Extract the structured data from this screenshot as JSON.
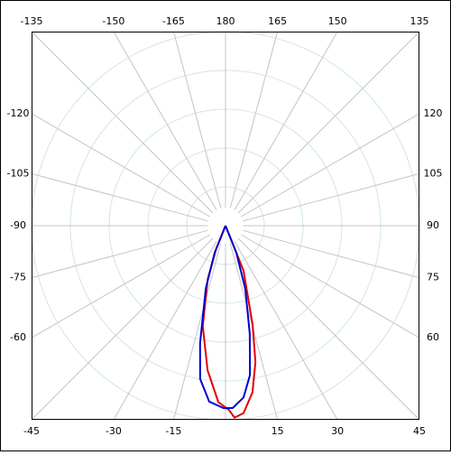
{
  "chart_data": {
    "type": "polar",
    "thetaticks": [
      -135,
      -150,
      -165,
      180,
      165,
      150,
      135,
      -120,
      -105,
      -90,
      -75,
      -60,
      -45,
      -30,
      -15,
      15,
      30,
      45,
      120,
      105,
      90,
      75,
      60
    ],
    "rlim": [
      0,
      1
    ],
    "series": [
      {
        "color": "#e00000",
        "theta": [
          -21.8,
          -18.4,
          -12.8,
          -7.1,
          -2.3,
          1.1,
          2.7,
          5.5,
          9.2,
          12.4,
          15.3,
          21.8
        ],
        "r": [
          0.13,
          0.29,
          0.53,
          0.75,
          0.91,
          0.95,
          0.99,
          0.97,
          0.87,
          0.72,
          0.53,
          0.25
        ]
      },
      {
        "color": "#0000d0",
        "theta": [
          -21.8,
          -17.4,
          -12.2,
          -9.4,
          -5.3,
          -0.6,
          2.3,
          6,
          9.3,
          12.7,
          17.4,
          21.8
        ],
        "r": [
          0.15,
          0.34,
          0.62,
          0.8,
          0.91,
          0.94,
          0.94,
          0.89,
          0.78,
          0.57,
          0.34,
          0.15
        ]
      }
    ]
  }
}
